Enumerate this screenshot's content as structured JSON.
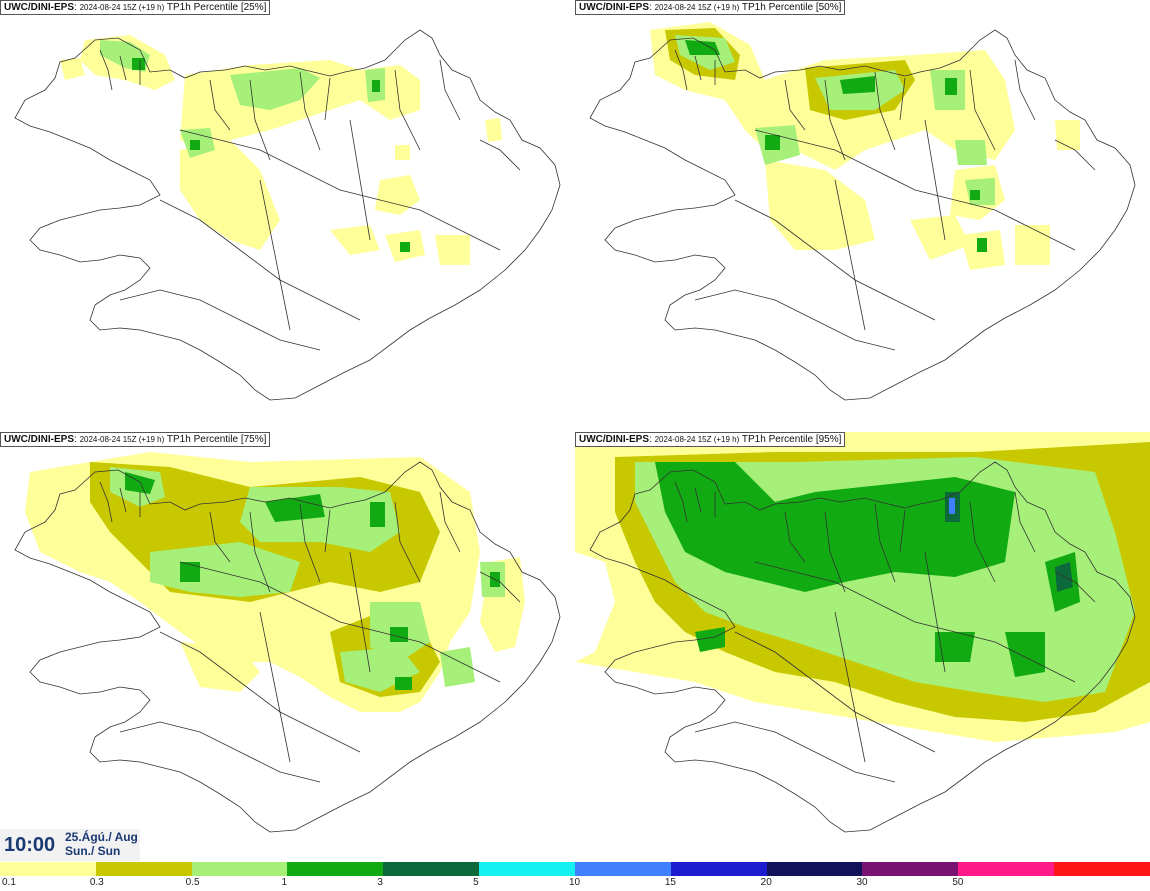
{
  "panels": [
    {
      "model": "UWC/DINI-EPS",
      "run": "2024-08-24 15Z (+19 h)",
      "product": "TP1h Percentile [25%]"
    },
    {
      "model": "UWC/DINI-EPS",
      "run": "2024-08-24 15Z (+19 h)",
      "product": "TP1h Percentile [50%]"
    },
    {
      "model": "UWC/DINI-EPS",
      "run": "2024-08-24 15Z (+19 h)",
      "product": "TP1h Percentile [75%]"
    },
    {
      "model": "UWC/DINI-EPS",
      "run": "2024-08-24 15Z (+19 h)",
      "product": "TP1h Percentile [95%]"
    }
  ],
  "valid_time": {
    "time": "10:00",
    "date": "25.Ágú./ Aug",
    "day": "Sun./ Sun"
  },
  "legend": {
    "colors": [
      "#ffff99",
      "#c8c800",
      "#a6f07a",
      "#12aa12",
      "#0c6a3a",
      "#15f0f0",
      "#4080ff",
      "#1c1cd0",
      "#12125a",
      "#7a1272",
      "#ff1a8a",
      "#ff1616"
    ],
    "labels": [
      "0.1",
      "0.3",
      "0.5",
      "1",
      "3",
      "5",
      "10",
      "15",
      "20",
      "30",
      "50"
    ]
  }
}
